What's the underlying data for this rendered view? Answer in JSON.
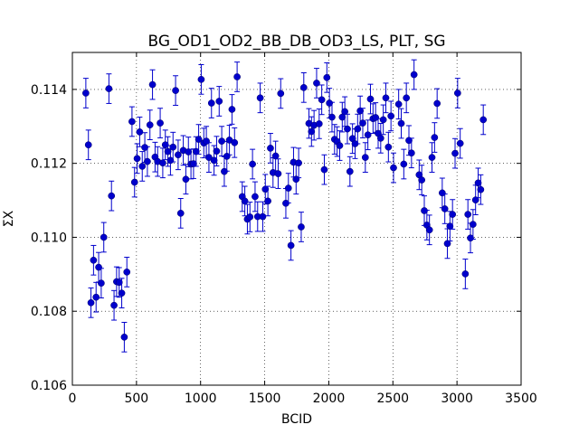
{
  "chart_data": {
    "type": "scatter",
    "title": "BG_OD1_OD2_BB_DB_OD3_LS, PLT, SG",
    "xlabel": "BCID",
    "ylabel": "ΣX",
    "xlim": [
      0,
      3500
    ],
    "ylim": [
      0.106,
      0.115
    ],
    "x_ticks": [
      0,
      500,
      1000,
      1500,
      2000,
      2500,
      3000,
      3500
    ],
    "y_ticks": [
      0.106,
      0.108,
      0.11,
      0.112,
      0.114
    ],
    "x_tick_labels": [
      "0",
      "500",
      "1000",
      "1500",
      "2000",
      "2500",
      "3000",
      "3500"
    ],
    "y_tick_labels": [
      "0.106",
      "0.108",
      "0.110",
      "0.112",
      "0.114"
    ],
    "grid": true,
    "marker_color": "#0000cc",
    "error_bar": 0.0004,
    "points": [
      [
        105,
        0.1139
      ],
      [
        125,
        0.1125
      ],
      [
        145,
        0.10823
      ],
      [
        165,
        0.10938
      ],
      [
        185,
        0.10838
      ],
      [
        205,
        0.10919
      ],
      [
        225,
        0.10876
      ],
      [
        245,
        0.11
      ],
      [
        285,
        0.11402
      ],
      [
        305,
        0.11112
      ],
      [
        325,
        0.10816
      ],
      [
        345,
        0.1088
      ],
      [
        365,
        0.10878
      ],
      [
        385,
        0.10849
      ],
      [
        405,
        0.1073
      ],
      [
        425,
        0.10906
      ],
      [
        465,
        0.11313
      ],
      [
        485,
        0.11149
      ],
      [
        505,
        0.11213
      ],
      [
        525,
        0.11285
      ],
      [
        545,
        0.11192
      ],
      [
        565,
        0.11243
      ],
      [
        585,
        0.11205
      ],
      [
        605,
        0.11304
      ],
      [
        625,
        0.11413
      ],
      [
        645,
        0.11217
      ],
      [
        665,
        0.11205
      ],
      [
        685,
        0.11309
      ],
      [
        705,
        0.11201
      ],
      [
        725,
        0.1125
      ],
      [
        745,
        0.11232
      ],
      [
        765,
        0.11208
      ],
      [
        785,
        0.11244
      ],
      [
        805,
        0.11397
      ],
      [
        825,
        0.11223
      ],
      [
        845,
        0.11065
      ],
      [
        865,
        0.11235
      ],
      [
        885,
        0.11157
      ],
      [
        905,
        0.11231
      ],
      [
        925,
        0.11198
      ],
      [
        945,
        0.11199
      ],
      [
        965,
        0.11232
      ],
      [
        985,
        0.11265
      ],
      [
        1005,
        0.11427
      ],
      [
        1025,
        0.11255
      ],
      [
        1045,
        0.1126
      ],
      [
        1065,
        0.11216
      ],
      [
        1085,
        0.11363
      ],
      [
        1105,
        0.11208
      ],
      [
        1125,
        0.11233
      ],
      [
        1145,
        0.11368
      ],
      [
        1165,
        0.1126
      ],
      [
        1185,
        0.11178
      ],
      [
        1205,
        0.11219
      ],
      [
        1225,
        0.11263
      ],
      [
        1245,
        0.11346
      ],
      [
        1265,
        0.11256
      ],
      [
        1285,
        0.11434
      ],
      [
        1325,
        0.1111
      ],
      [
        1345,
        0.11098
      ],
      [
        1365,
        0.11049
      ],
      [
        1385,
        0.11055
      ],
      [
        1405,
        0.11198
      ],
      [
        1425,
        0.1111
      ],
      [
        1445,
        0.11056
      ],
      [
        1465,
        0.11377
      ],
      [
        1485,
        0.11056
      ],
      [
        1505,
        0.1113
      ],
      [
        1525,
        0.11098
      ],
      [
        1545,
        0.11241
      ],
      [
        1565,
        0.11175
      ],
      [
        1585,
        0.1122
      ],
      [
        1605,
        0.11172
      ],
      [
        1625,
        0.11389
      ],
      [
        1665,
        0.11092
      ],
      [
        1685,
        0.11133
      ],
      [
        1705,
        0.10978
      ],
      [
        1725,
        0.11203
      ],
      [
        1745,
        0.11157
      ],
      [
        1765,
        0.11201
      ],
      [
        1785,
        0.11028
      ],
      [
        1805,
        0.11405
      ],
      [
        1845,
        0.11308
      ],
      [
        1865,
        0.11286
      ],
      [
        1885,
        0.11303
      ],
      [
        1905,
        0.11417
      ],
      [
        1925,
        0.11307
      ],
      [
        1945,
        0.11372
      ],
      [
        1965,
        0.11183
      ],
      [
        1985,
        0.11432
      ],
      [
        2005,
        0.11363
      ],
      [
        2025,
        0.11325
      ],
      [
        2045,
        0.11265
      ],
      [
        2065,
        0.11259
      ],
      [
        2085,
        0.11248
      ],
      [
        2105,
        0.11325
      ],
      [
        2125,
        0.1134
      ],
      [
        2145,
        0.11293
      ],
      [
        2165,
        0.11178
      ],
      [
        2185,
        0.11267
      ],
      [
        2205,
        0.11253
      ],
      [
        2225,
        0.11293
      ],
      [
        2245,
        0.11342
      ],
      [
        2265,
        0.11309
      ],
      [
        2285,
        0.11216
      ],
      [
        2305,
        0.11277
      ],
      [
        2325,
        0.11374
      ],
      [
        2345,
        0.11321
      ],
      [
        2365,
        0.11324
      ],
      [
        2385,
        0.11281
      ],
      [
        2405,
        0.11268
      ],
      [
        2425,
        0.11318
      ],
      [
        2445,
        0.11377
      ],
      [
        2465,
        0.11244
      ],
      [
        2485,
        0.11328
      ],
      [
        2505,
        0.11188
      ],
      [
        2545,
        0.1136
      ],
      [
        2565,
        0.11308
      ],
      [
        2585,
        0.11198
      ],
      [
        2605,
        0.11377
      ],
      [
        2625,
        0.11262
      ],
      [
        2645,
        0.11228
      ],
      [
        2665,
        0.1144
      ],
      [
        2705,
        0.11169
      ],
      [
        2725,
        0.11155
      ],
      [
        2745,
        0.11072
      ],
      [
        2765,
        0.11033
      ],
      [
        2785,
        0.1102
      ],
      [
        2805,
        0.11216
      ],
      [
        2825,
        0.1127
      ],
      [
        2845,
        0.11362
      ],
      [
        2885,
        0.1112
      ],
      [
        2905,
        0.11077
      ],
      [
        2925,
        0.10983
      ],
      [
        2945,
        0.1103
      ],
      [
        2965,
        0.11062
      ],
      [
        2985,
        0.11227
      ],
      [
        3005,
        0.1139
      ],
      [
        3025,
        0.11254
      ],
      [
        3065,
        0.10901
      ],
      [
        3085,
        0.11062
      ],
      [
        3105,
        0.10998
      ],
      [
        3125,
        0.11035
      ],
      [
        3145,
        0.11101
      ],
      [
        3165,
        0.11147
      ],
      [
        3185,
        0.11129
      ],
      [
        3205,
        0.11318
      ]
    ]
  }
}
